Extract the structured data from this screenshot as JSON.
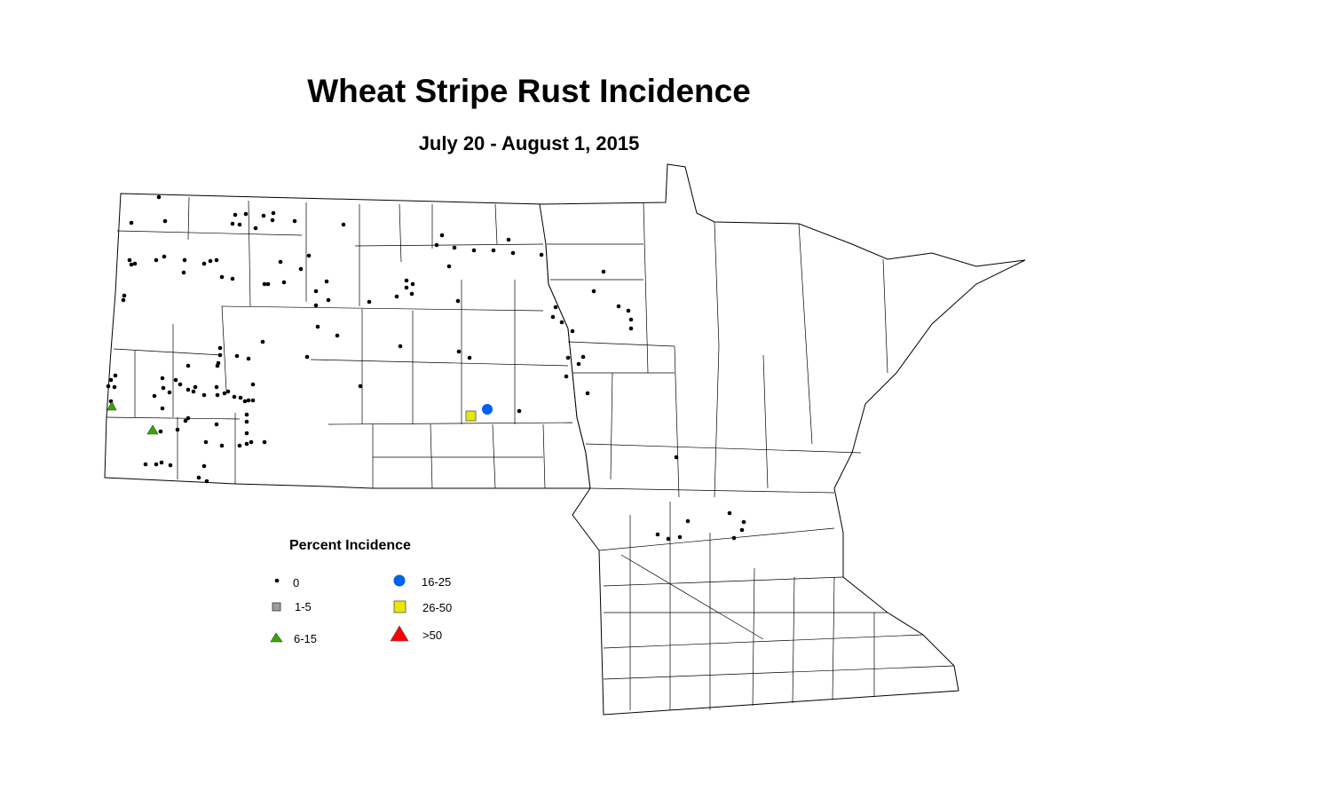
{
  "title": "Wheat Stripe Rust Incidence",
  "subtitle": "July 20 - August 1, 2015",
  "legend": {
    "title": "Percent Incidence",
    "items": [
      {
        "label": "0",
        "symbol": "small-dot",
        "color": "#000000"
      },
      {
        "label": "1-5",
        "symbol": "square",
        "color": "#9c9c9c"
      },
      {
        "label": "6-15",
        "symbol": "triangle",
        "color": "#38a800"
      },
      {
        "label": "16-25",
        "symbol": "circle",
        "color": "#0060f0"
      },
      {
        "label": "26-50",
        "symbol": "square",
        "color": "#e8e800"
      },
      {
        "label": ">50",
        "symbol": "triangle",
        "color": "#ff0000"
      }
    ]
  }
}
